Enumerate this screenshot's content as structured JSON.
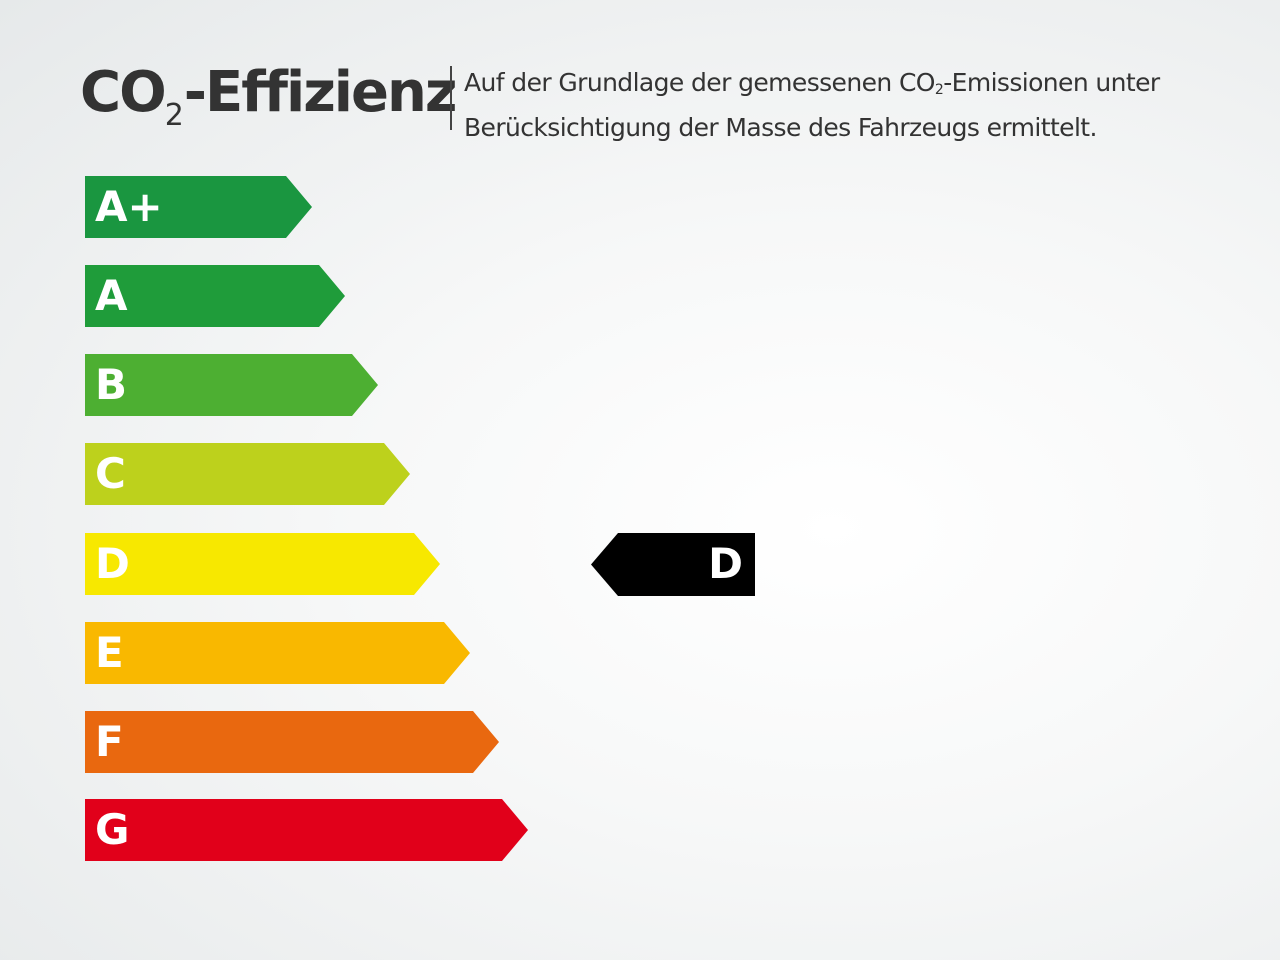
{
  "header": {
    "title_prefix": "CO",
    "title_sub": "2",
    "title_suffix": "-Effizienz",
    "desc_line1_a": "Auf der Grundlage der gemessenen CO",
    "desc_line1_sub": "2",
    "desc_line1_b": "-Emissionen unter",
    "desc_line2": "Berücksichtigung der Masse des Fahrzeugs ermittelt."
  },
  "classes": [
    {
      "label": "A+",
      "color": "#1a9640"
    },
    {
      "label": "A",
      "color": "#1f9c3a"
    },
    {
      "label": "B",
      "color": "#4daf32"
    },
    {
      "label": "C",
      "color": "#bdd11c"
    },
    {
      "label": "D",
      "color": "#f7e800"
    },
    {
      "label": "E",
      "color": "#f9b800"
    },
    {
      "label": "F",
      "color": "#e9680f"
    },
    {
      "label": "G",
      "color": "#e1001a"
    }
  ],
  "rating": {
    "label": "D",
    "color": "#000000"
  }
}
